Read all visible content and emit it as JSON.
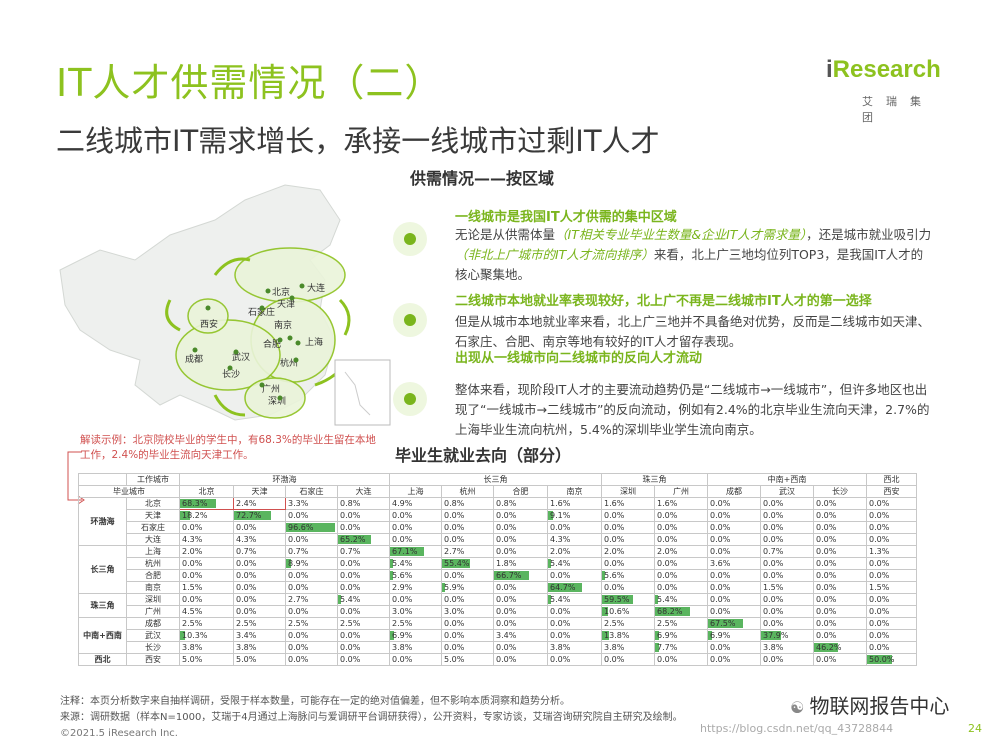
{
  "header": {
    "title": "IT人才供需情况（二）",
    "subtitle": "二线城市IT需求增长，承接一线城市过剩IT人才",
    "logo_brand_i": "i",
    "logo_brand_rest": "Research",
    "logo_cn": "艾瑞集团"
  },
  "section_title": "供需情况——按区域",
  "map_cities": [
    "北京",
    "天津",
    "大连",
    "石家庄",
    "西安",
    "南京",
    "上海",
    "合肥",
    "成都",
    "武汉",
    "杭州",
    "长沙",
    "广州",
    "深圳"
  ],
  "points": [
    {
      "heading": "一线城市是我国IT人才供需的集中区域",
      "body_a": "无论是从供需体量",
      "body_it1": "（IT相关专业毕业生数量&企业IT人才需求量）",
      "body_b": "，还是城市就业吸引力",
      "body_it2": "（非北上广城市的IT人才流向排序）",
      "body_c": "来看，北上广三地均位列TOP3，是我国IT人才的核心聚集地。"
    },
    {
      "heading": "二线城市本地就业率表现较好，北上广不再是二线城市IT人才的第一选择",
      "body": "但是从城市本地就业率来看，北上广三地并不具备绝对优势，反而是二线城市如天津、石家庄、合肥、南京等地有较好的IT人才留存表现。"
    },
    {
      "heading": "出现从一线城市向二线城市的反向人才流动",
      "body": "整体来看，现阶段IT人才的主要流动趋势仍是“二线城市→一线城市”，但许多地区也出现了“一线城市→二线城市”的反向流动，例如有2.4%的北京毕业生流向天津，2.7%的上海毕业生流向杭州，5.4%的深圳毕业学生流向南京。"
    }
  ],
  "note": "解读示例：北京院校毕业的学生中，有68.3%的毕业生留在本地工作，2.4%的毕业生流向天津工作。",
  "table_title": "毕业生就业去向（部分）",
  "table": {
    "corner_top": "工作城市",
    "corner_left": "毕业城市",
    "col_groups": [
      {
        "name": "环渤海",
        "cols": [
          "北京",
          "天津",
          "石家庄",
          "大连"
        ]
      },
      {
        "name": "长三角",
        "cols": [
          "上海",
          "杭州",
          "合肥",
          "南京"
        ]
      },
      {
        "name": "珠三角",
        "cols": [
          "深圳",
          "广州"
        ]
      },
      {
        "name": "中南+西南",
        "cols": [
          "成都",
          "武汉",
          "长沙"
        ]
      },
      {
        "name": "西北",
        "cols": [
          "西安"
        ]
      }
    ],
    "row_groups": [
      {
        "name": "环渤海",
        "rows": [
          {
            "city": "北京",
            "vals": [
              "68.3%",
              "2.4%",
              "3.3%",
              "0.8%",
              "4.9%",
              "0.8%",
              "0.8%",
              "1.6%",
              "1.6%",
              "1.6%",
              "0.0%",
              "0.0%",
              "0.0%",
              "0.0%"
            ]
          },
          {
            "city": "天津",
            "vals": [
              "18.2%",
              "72.7%",
              "0.0%",
              "0.0%",
              "0.0%",
              "0.0%",
              "0.0%",
              "9.1%",
              "0.0%",
              "0.0%",
              "0.0%",
              "0.0%",
              "0.0%",
              "0.0%"
            ]
          },
          {
            "city": "石家庄",
            "vals": [
              "0.0%",
              "0.0%",
              "96.6%",
              "0.0%",
              "0.0%",
              "0.0%",
              "0.0%",
              "0.0%",
              "0.0%",
              "0.0%",
              "0.0%",
              "0.0%",
              "0.0%",
              "0.0%"
            ]
          },
          {
            "city": "大连",
            "vals": [
              "4.3%",
              "4.3%",
              "0.0%",
              "65.2%",
              "0.0%",
              "0.0%",
              "0.0%",
              "4.3%",
              "0.0%",
              "0.0%",
              "0.0%",
              "0.0%",
              "0.0%",
              "0.0%"
            ]
          }
        ]
      },
      {
        "name": "长三角",
        "rows": [
          {
            "city": "上海",
            "vals": [
              "2.0%",
              "0.7%",
              "0.7%",
              "0.7%",
              "67.1%",
              "2.7%",
              "0.0%",
              "2.0%",
              "2.0%",
              "2.0%",
              "0.0%",
              "0.7%",
              "0.0%",
              "1.3%"
            ]
          },
          {
            "city": "杭州",
            "vals": [
              "0.0%",
              "0.0%",
              "8.9%",
              "0.0%",
              "5.4%",
              "55.4%",
              "1.8%",
              "5.4%",
              "0.0%",
              "0.0%",
              "3.6%",
              "0.0%",
              "0.0%",
              "0.0%"
            ]
          },
          {
            "city": "合肥",
            "vals": [
              "0.0%",
              "0.0%",
              "0.0%",
              "0.0%",
              "5.6%",
              "0.0%",
              "66.7%",
              "0.0%",
              "5.6%",
              "0.0%",
              "0.0%",
              "0.0%",
              "0.0%",
              "0.0%"
            ]
          },
          {
            "city": "南京",
            "vals": [
              "1.5%",
              "0.0%",
              "0.0%",
              "0.0%",
              "2.9%",
              "5.9%",
              "0.0%",
              "64.7%",
              "0.0%",
              "0.0%",
              "0.0%",
              "1.5%",
              "0.0%",
              "1.5%"
            ]
          }
        ]
      },
      {
        "name": "珠三角",
        "rows": [
          {
            "city": "深圳",
            "vals": [
              "0.0%",
              "0.0%",
              "2.7%",
              "5.4%",
              "0.0%",
              "0.0%",
              "0.0%",
              "5.4%",
              "59.5%",
              "5.4%",
              "0.0%",
              "0.0%",
              "0.0%",
              "0.0%"
            ]
          },
          {
            "city": "广州",
            "vals": [
              "4.5%",
              "0.0%",
              "0.0%",
              "0.0%",
              "3.0%",
              "3.0%",
              "0.0%",
              "0.0%",
              "10.6%",
              "68.2%",
              "0.0%",
              "0.0%",
              "0.0%",
              "0.0%"
            ]
          }
        ]
      },
      {
        "name": "中南+西南",
        "rows": [
          {
            "city": "成都",
            "vals": [
              "2.5%",
              "2.5%",
              "2.5%",
              "2.5%",
              "2.5%",
              "0.0%",
              "0.0%",
              "0.0%",
              "2.5%",
              "2.5%",
              "67.5%",
              "0.0%",
              "0.0%",
              "0.0%"
            ]
          },
          {
            "city": "武汉",
            "vals": [
              "10.3%",
              "3.4%",
              "0.0%",
              "0.0%",
              "6.9%",
              "0.0%",
              "3.4%",
              "0.0%",
              "13.8%",
              "6.9%",
              "6.9%",
              "37.9%",
              "0.0%",
              "0.0%"
            ]
          },
          {
            "city": "长沙",
            "vals": [
              "3.8%",
              "3.8%",
              "0.0%",
              "0.0%",
              "3.8%",
              "0.0%",
              "0.0%",
              "3.8%",
              "3.8%",
              "7.7%",
              "0.0%",
              "3.8%",
              "46.2%",
              "0.0%"
            ]
          }
        ]
      },
      {
        "name": "西北",
        "rows": [
          {
            "city": "西安",
            "vals": [
              "5.0%",
              "5.0%",
              "0.0%",
              "0.0%",
              "0.0%",
              "5.0%",
              "0.0%",
              "0.0%",
              "0.0%",
              "0.0%",
              "0.0%",
              "0.0%",
              "0.0%",
              "50.0%"
            ]
          }
        ]
      }
    ]
  },
  "footer": {
    "note": "注释：本页分析数字来自抽样调研，受限于样本数量，可能存在一定的绝对值偏差，但不影响本质洞察和趋势分析。",
    "source": "来源：调研数据（样本N=1000，艾瑞于4月通过上海脉问与爱调研平台调研获得），公开资料，专家访谈，艾瑞咨询研究院自主研究及绘制。",
    "copyright": "©2021.5 iResearch Inc.",
    "watermark_main": "物联网报告中心",
    "watermark_url": "https://blog.csdn.net/qq_43728844",
    "page_number": "24"
  },
  "colors": {
    "accent": "#8dc21f",
    "bar": "#5ab55f",
    "note": "#d0504f"
  }
}
